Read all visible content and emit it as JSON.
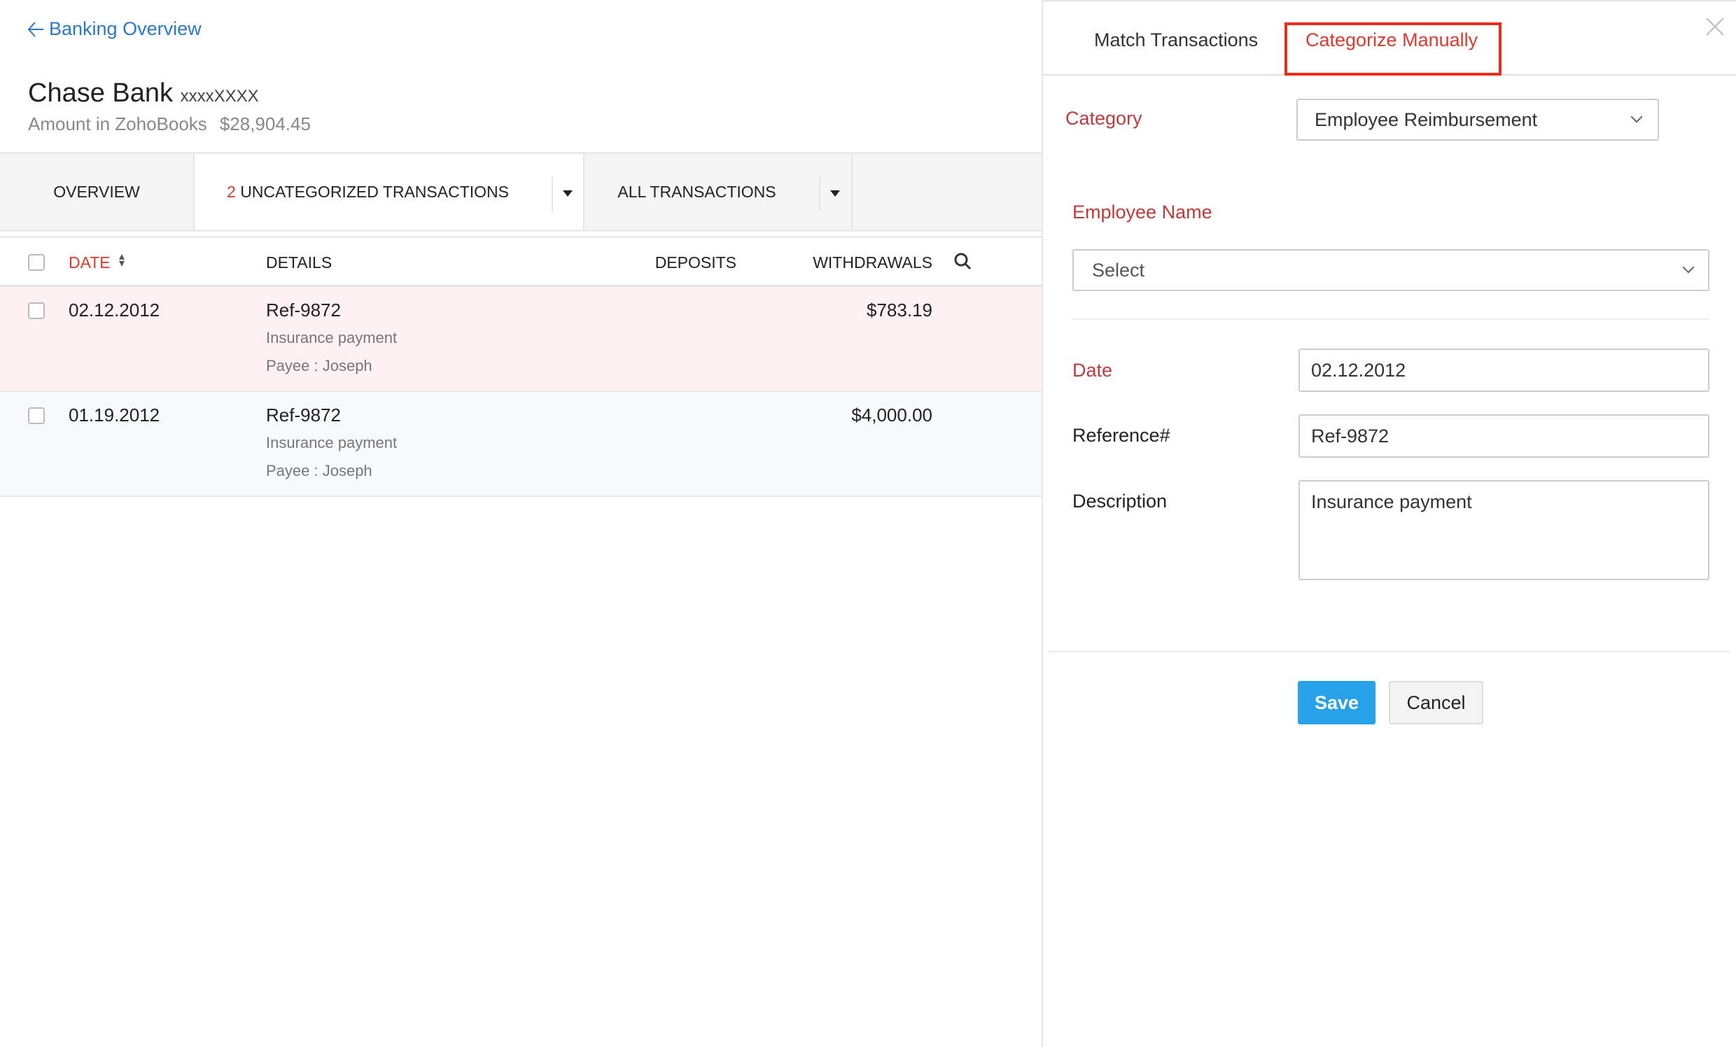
{
  "nav": {
    "back_label": "Banking Overview"
  },
  "account": {
    "name": "Chase Bank",
    "number": "xxxxXXXX",
    "amount_label": "Amount in ZohoBooks",
    "amount": "$28,904.45"
  },
  "tabs": {
    "overview": "OVERVIEW",
    "uncategorized_count": "2",
    "uncategorized": "UNCATEGORIZED TRANSACTIONS",
    "all": "ALL TRANSACTIONS"
  },
  "table": {
    "columns": {
      "date": "DATE",
      "details": "DETAILS",
      "deposits": "DEPOSITS",
      "withdrawals": "WITHDRAWALS"
    },
    "rows": [
      {
        "date": "02.12.2012",
        "ref": "Ref-9872",
        "description": "Insurance payment",
        "payee": "Payee : Joseph",
        "deposit": "",
        "withdrawal": "$783.19"
      },
      {
        "date": "01.19.2012",
        "ref": "Ref-9872",
        "description": "Insurance payment",
        "payee": "Payee : Joseph",
        "deposit": "",
        "withdrawal": "$4,000.00"
      }
    ]
  },
  "panel": {
    "tabs": {
      "match": "Match Transactions",
      "categorize": "Categorize Manually"
    },
    "category_label": "Category",
    "category_value": "Employee Reimbursement",
    "employee_label": "Employee Name",
    "employee_value": "Select",
    "date_label": "Date",
    "date_value": "02.12.2012",
    "reference_label": "Reference#",
    "reference_value": "Ref-9872",
    "description_label": "Description",
    "description_value": "Insurance payment",
    "save": "Save",
    "cancel": "Cancel"
  },
  "colors": {
    "accent": "#2a78c8",
    "required": "#c0393b",
    "highlight": "#f0291a",
    "save": "#27a1e8",
    "selected_row": "#fef1f1",
    "row": "#f7f9fd"
  }
}
